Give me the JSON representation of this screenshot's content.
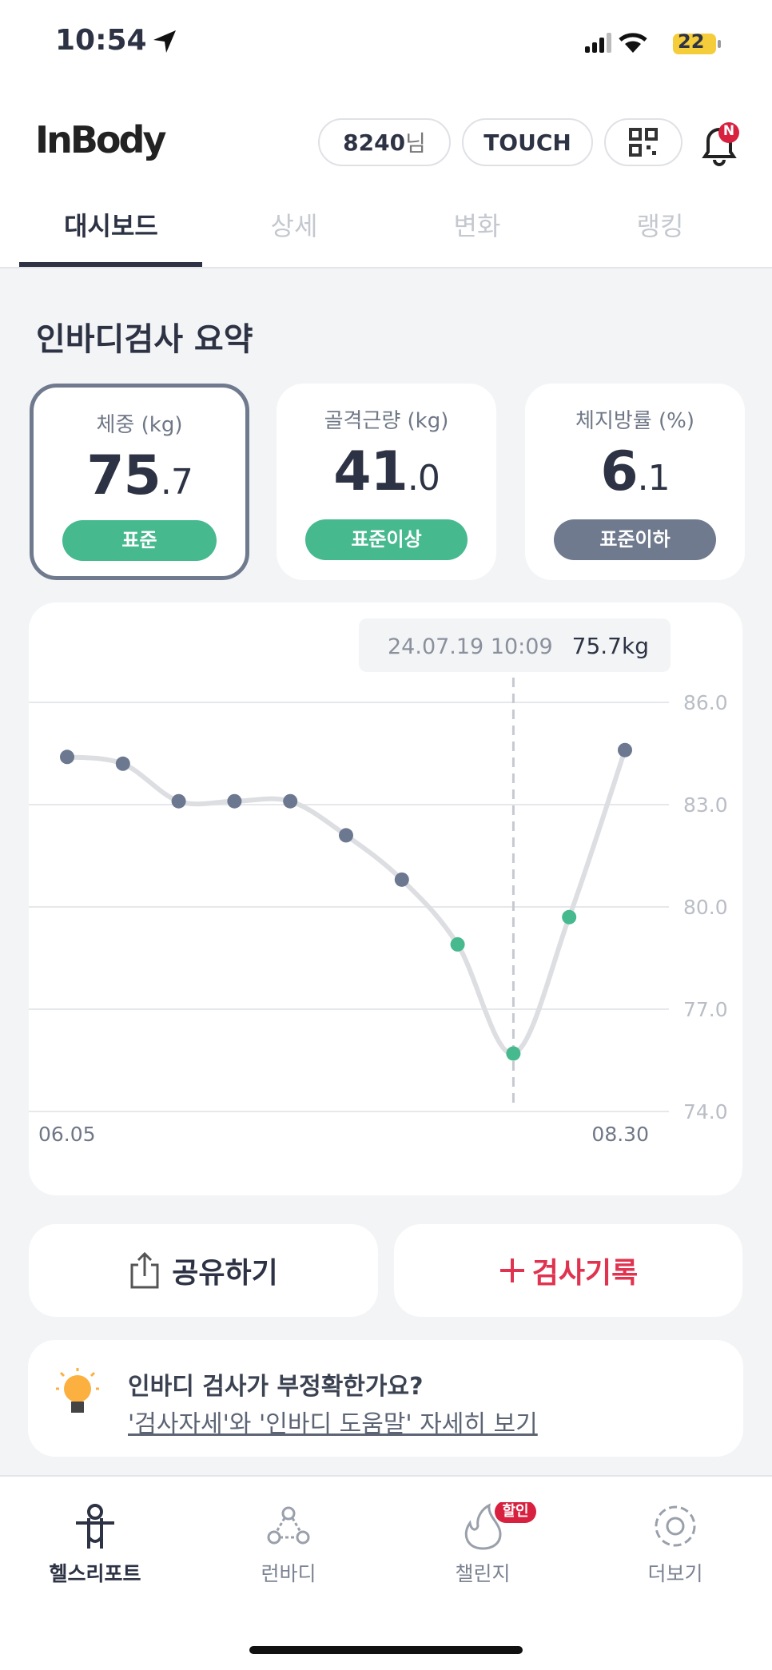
{
  "status_bar": {
    "time": "10:54",
    "battery": "22"
  },
  "header": {
    "logo": "InBody",
    "user_id": "8240",
    "user_suffix": "님",
    "touch": "TOUCH",
    "badge": "N"
  },
  "tabs": [
    "대시보드",
    "상세",
    "변화",
    "랭킹"
  ],
  "section_title": "인바디검사 요약",
  "cards": [
    {
      "label": "체중 (kg)",
      "value_int": "75",
      "value_dec": ".7",
      "status": "표준",
      "status_color": "#46b98f"
    },
    {
      "label": "골격근량 (kg)",
      "value_int": "41",
      "value_dec": ".0",
      "status": "표준이상",
      "status_color": "#46b98f"
    },
    {
      "label": "체지방률 (%)",
      "value_int": "6",
      "value_dec": ".1",
      "status": "표준이하",
      "status_color": "#6f7a8e"
    }
  ],
  "chart_data": {
    "type": "line",
    "categories": [
      "06.05",
      null,
      null,
      null,
      null,
      null,
      null,
      null,
      null,
      null,
      "08.30"
    ],
    "values": [
      84.4,
      84.2,
      83.1,
      83.1,
      83.1,
      82.1,
      80.8,
      78.9,
      75.7,
      79.7,
      84.6
    ],
    "point_colors": [
      "#6b7890",
      "#6b7890",
      "#6b7890",
      "#6b7890",
      "#6b7890",
      "#6b7890",
      "#6b7890",
      "#46b98f",
      "#46b98f",
      "#46b98f",
      "#6b7890"
    ],
    "color": "#dcdee2",
    "ylim": [
      74,
      86
    ],
    "yticks": [
      {
        "value": 74,
        "label": "74.0"
      },
      {
        "value": 77,
        "label": "77.0"
      },
      {
        "value": 80,
        "label": "80.0"
      },
      {
        "value": 83,
        "label": "83.0"
      },
      {
        "value": 86,
        "label": "86.0"
      }
    ],
    "grid": true,
    "highlight_index": 8,
    "tooltip_date": "24.07.19 10:09",
    "tooltip_value": "75.7kg"
  },
  "buttons": {
    "share": "공유하기",
    "record": "검사기록"
  },
  "info": {
    "title": "인바디 검사가 부정확한가요?",
    "link": "'검사자세'와 '인바디 도움말' 자세히 보기"
  },
  "nav": {
    "items": [
      "헬스리포트",
      "런바디",
      "챌린지",
      "더보기"
    ],
    "badge": "할인"
  }
}
